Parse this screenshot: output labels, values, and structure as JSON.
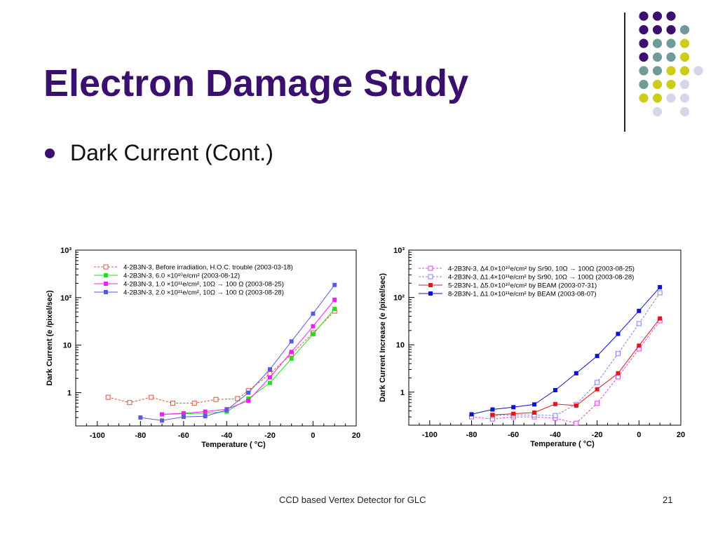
{
  "slide": {
    "title": "Electron Damage Study",
    "bullet": "Dark Current (Cont.)",
    "footer": "CCD based Vertex Detector for GLC",
    "page_number": "21"
  },
  "decoration": {
    "colors": {
      "purple": "#3b0f6e",
      "teal": "#6f9a9a",
      "yellow": "#cccc1a",
      "lavender": "#d6d6e8"
    },
    "dots": [
      [
        "purple",
        "purple",
        "purple",
        null
      ],
      [
        "purple",
        "purple",
        "purple",
        "teal"
      ],
      [
        "purple",
        "teal",
        "teal",
        "yellow"
      ],
      [
        "purple",
        "teal",
        "teal",
        "yellow"
      ],
      [
        "teal",
        "teal",
        "yellow",
        "yellow",
        "lavender"
      ],
      [
        "teal",
        "yellow",
        "yellow",
        "lavender"
      ],
      [
        "yellow",
        "yellow",
        "lavender",
        "lavender"
      ],
      [
        null,
        "lavender",
        null,
        "lavender"
      ]
    ]
  },
  "chart_data": [
    {
      "type": "scatter",
      "xlabel": "Temperature (  °C)",
      "ylabel": "Dark Current (e  /pixel/sec)",
      "xlim": [
        -110,
        20
      ],
      "ylim": [
        0.2,
        1000
      ],
      "yscale": "log",
      "x_ticks": [
        "-100",
        "-80",
        "-60",
        "-40",
        "-20",
        "0",
        "20"
      ],
      "y_ticks": [
        "1",
        "10",
        "10²",
        "10³"
      ],
      "legend_position": "top-left",
      "series": [
        {
          "name": "4-2B3N-3, Before irradiation, H.O.C. trouble (2003-03-18)",
          "color": "#e0503a",
          "dashed": true,
          "marker": "open-square",
          "x": [
            -95,
            -85,
            -75,
            -65,
            -55,
            -45,
            -35,
            -30,
            -20,
            -10,
            0,
            10
          ],
          "y": [
            0.8,
            0.62,
            0.8,
            0.6,
            0.6,
            0.72,
            0.75,
            1.1,
            2.5,
            6.5,
            18,
            52
          ]
        },
        {
          "name": "4-2B3N-3, 6.0 ×10¹⁰e/cm² (2003-08-12)",
          "color": "#22e022",
          "dashed": false,
          "marker": "filled-square",
          "x": [
            -70,
            -60,
            -50,
            -40,
            -30,
            -20,
            -10,
            0,
            10
          ],
          "y": [
            0.35,
            0.36,
            0.37,
            0.4,
            0.75,
            1.6,
            5.2,
            17,
            58
          ]
        },
        {
          "name": "4-2B3N-3, 1.0 ×10¹¹e/cm², 10Ω → 100 Ω  (2003-08-25)",
          "color": "#f020f0",
          "dashed": false,
          "marker": "filled-square",
          "x": [
            -70,
            -60,
            -50,
            -40,
            -30,
            -20,
            -10,
            0,
            10
          ],
          "y": [
            0.35,
            0.37,
            0.4,
            0.45,
            0.68,
            2.1,
            7.2,
            25,
            90
          ]
        },
        {
          "name": "4-2B3N-3, 2.0 ×10¹¹e/cm², 10Ω → 100 Ω  (2003-08-28)",
          "color": "#5a5ae0",
          "dashed": false,
          "marker": "filled-square",
          "x": [
            -80,
            -70,
            -60,
            -50,
            -40,
            -30,
            -20,
            -10,
            0,
            10
          ],
          "y": [
            0.3,
            0.26,
            0.31,
            0.32,
            0.43,
            1.0,
            3.1,
            12,
            46,
            185
          ]
        }
      ]
    },
    {
      "type": "scatter",
      "xlabel": "Temperature (  °C)",
      "ylabel": "Dark Current Increase (e  /pixel/sec)",
      "xlim": [
        -110,
        20
      ],
      "ylim": [
        0.2,
        1000
      ],
      "yscale": "log",
      "x_ticks": [
        "-100",
        "-80",
        "-60",
        "-40",
        "-20",
        "0",
        "20"
      ],
      "y_ticks": [
        "1",
        "10",
        "10²",
        "10³"
      ],
      "legend_position": "top-left",
      "series": [
        {
          "name": "4-2B3N-3,  Δ4.0×10¹⁰e/cm² by Sr90, 10Ω → 100Ω  (2003-08-25)",
          "color": "#e040e0",
          "dashed": true,
          "marker": "open-square",
          "x": [
            -80,
            -70,
            -60,
            -50,
            -40,
            -30,
            -20,
            -10,
            0,
            10
          ],
          "y": [
            0.3,
            0.27,
            0.3,
            0.3,
            0.28,
            0.22,
            0.58,
            2.1,
            8.2,
            32
          ]
        },
        {
          "name": "4-2B3N-3,  Δ1.4×10¹¹e/cm² by Sr90, 10Ω → 100Ω  (2003-08-28)",
          "color": "#8080e8",
          "dashed": true,
          "marker": "open-square",
          "x": [
            -70,
            -60,
            -50,
            -40,
            -30,
            -20,
            -10,
            0,
            10
          ],
          "y": [
            0.32,
            0.33,
            0.33,
            0.32,
            0.55,
            1.6,
            6.5,
            28,
            125
          ]
        },
        {
          "name": "5-2B3N-1,  Δ5.0×10¹⁰e/cm² by BEAM (2003-07-31)",
          "color": "#e01818",
          "dashed": false,
          "marker": "filled-square",
          "x": [
            -70,
            -60,
            -50,
            -40,
            -30,
            -20,
            -10,
            0,
            10
          ],
          "y": [
            0.33,
            0.35,
            0.37,
            0.56,
            0.52,
            1.15,
            2.5,
            9.6,
            36
          ]
        },
        {
          "name": "8-2B3N-1,  Δ1.0×10¹¹e/cm² by BEAM (2003-08-07)",
          "color": "#1010d0",
          "dashed": false,
          "marker": "filled-square",
          "x": [
            -80,
            -70,
            -60,
            -50,
            -40,
            -30,
            -20,
            -10,
            0,
            10
          ],
          "y": [
            0.34,
            0.43,
            0.48,
            0.55,
            1.1,
            2.5,
            5.8,
            17,
            52,
            165
          ]
        }
      ]
    }
  ]
}
